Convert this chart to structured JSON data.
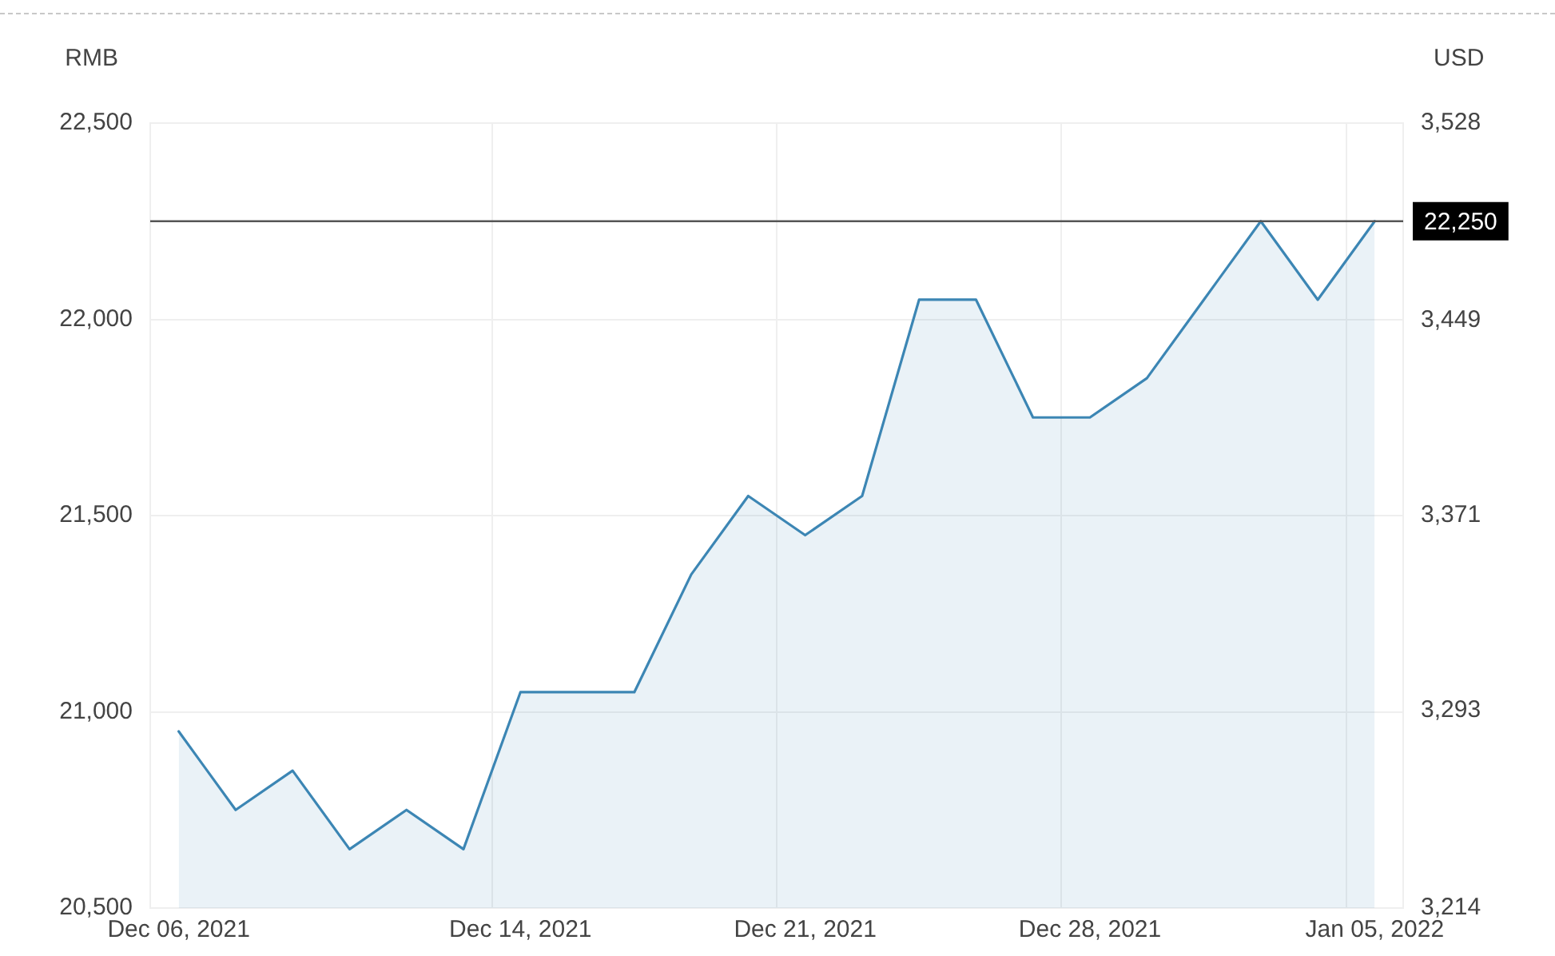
{
  "chart_data": {
    "type": "area",
    "categories": [
      "Dec 06, 2021",
      null,
      null,
      null,
      null,
      null,
      "Dec 14, 2021",
      null,
      null,
      null,
      null,
      "Dec 21, 2021",
      null,
      null,
      null,
      null,
      "Dec 28, 2021",
      null,
      null,
      null,
      null,
      "Jan 05, 2022"
    ],
    "series": [
      {
        "color": "#3c86b4",
        "values": [
          20950,
          20750,
          20850,
          20650,
          20750,
          20650,
          21050,
          21050,
          21050,
          21350,
          21550,
          21450,
          21550,
          22050,
          22050,
          21750,
          21750,
          21850,
          22050,
          22250,
          22050,
          22250
        ]
      }
    ],
    "ylabel": "RMB",
    "y2label": "USD",
    "ylim": [
      20500,
      22500
    ],
    "yticks": [
      {
        "value": 20500,
        "label": "20,500"
      },
      {
        "value": 21000,
        "label": "21,000"
      },
      {
        "value": 21500,
        "label": "21,500"
      },
      {
        "value": 22000,
        "label": "22,000"
      },
      {
        "value": 22500,
        "label": "22,500"
      }
    ],
    "y2lim": [
      3214,
      3528
    ],
    "y2ticks": [
      {
        "value": 3214,
        "label": "3,214"
      },
      {
        "value": 3293,
        "label": "3,293"
      },
      {
        "value": 3371,
        "label": "3,371"
      },
      {
        "value": 3449,
        "label": "3,449"
      },
      {
        "value": 3528,
        "label": "3,528"
      }
    ],
    "ref_lines": [
      {
        "axis": "y",
        "value": 22250,
        "label": "22,250",
        "color": "#555555"
      }
    ],
    "grid": true,
    "marker": "none",
    "line_style": "solid"
  }
}
